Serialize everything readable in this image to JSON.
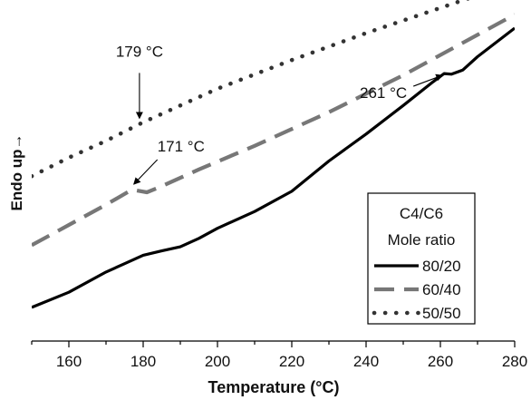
{
  "chart_data": {
    "type": "line",
    "title": "",
    "xlabel": "Temperature (°C)",
    "ylabel": "Endo up→",
    "xlim": [
      150,
      280
    ],
    "ylim": [
      0,
      10
    ],
    "x_ticks": [
      160,
      180,
      200,
      220,
      240,
      260,
      280
    ],
    "grid": false,
    "y_ticks_shown": false,
    "legend": {
      "position": "bottom-right",
      "title_lines": [
        "C4/C6",
        "Mole ratio"
      ]
    },
    "series": [
      {
        "name": "80/20",
        "style": "solid",
        "color": "#000000",
        "x": [
          150,
          160,
          170,
          175,
          180,
          185,
          190,
          195,
          200,
          210,
          220,
          230,
          240,
          250,
          258,
          261,
          263,
          266,
          270,
          280
        ],
        "y": [
          1.0,
          1.45,
          2.05,
          2.3,
          2.55,
          2.68,
          2.8,
          3.05,
          3.35,
          3.85,
          4.45,
          5.35,
          6.15,
          7.0,
          7.7,
          7.95,
          7.93,
          8.05,
          8.45,
          9.3
        ]
      },
      {
        "name": "60/40",
        "style": "dashed",
        "color": "#777777",
        "x": [
          150,
          160,
          170,
          177,
          181,
          185,
          195,
          210,
          230,
          250,
          270,
          280
        ],
        "y": [
          2.85,
          3.45,
          4.05,
          4.5,
          4.42,
          4.6,
          5.1,
          5.8,
          6.8,
          7.9,
          9.1,
          9.7
        ]
      },
      {
        "name": "50/50",
        "style": "dotted",
        "color": "#333333",
        "x": [
          150,
          160,
          170,
          180,
          190,
          200,
          220,
          240,
          260,
          280
        ],
        "y": [
          4.9,
          5.45,
          5.95,
          6.5,
          7.0,
          7.5,
          8.35,
          9.15,
          9.9,
          10.65
        ]
      }
    ],
    "annotations": [
      {
        "text": "179 °C",
        "x": 179,
        "y": 6.35
      },
      {
        "text": "171 °C",
        "x": 177,
        "y": 4.5
      },
      {
        "text": "261 °C",
        "x": 262,
        "y": 7.95
      }
    ]
  }
}
